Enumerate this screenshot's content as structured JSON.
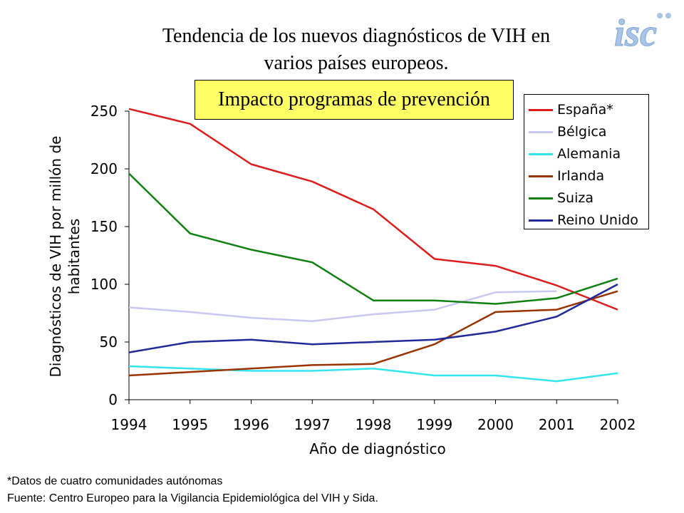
{
  "title_lines": [
    "Tendencia de los nuevos diagnósticos de VIH en",
    "varios países europeos."
  ],
  "logo": "isc",
  "banner": "Impacto programas de prevención",
  "footnotes": [
    "*Datos de cuatro comunidades autónomas",
    "Fuente: Centro Europeo para la Vigilancia Epidemiológica del VIH y Sida."
  ],
  "chart_data": {
    "type": "line",
    "title": "Tendencia de los nuevos diagnósticos de VIH en varios países europeos.",
    "xlabel": "Año de diagnóstico",
    "ylabel_lines": [
      "Diagnósticos de VIH por millón de",
      "habitantes"
    ],
    "x": [
      "1994",
      "1995",
      "1996",
      "1997",
      "1998",
      "1999",
      "2000",
      "2001",
      "2002"
    ],
    "ylim": [
      0,
      250
    ],
    "yticks": [
      0,
      50,
      100,
      150,
      200,
      250
    ],
    "grid": false,
    "legend_position": "top-right",
    "series": [
      {
        "name": "España*",
        "color": "#dd1c1c",
        "values": [
          252,
          239,
          204,
          189,
          165,
          122,
          116,
          99,
          78
        ]
      },
      {
        "name": "Bélgica",
        "color": "#c8c8f0",
        "values": [
          80,
          76,
          71,
          68,
          74,
          78,
          93,
          94,
          null
        ]
      },
      {
        "name": "Alemania",
        "color": "#33e6ee",
        "values": [
          29,
          27,
          25,
          25,
          27,
          21,
          21,
          16,
          23
        ]
      },
      {
        "name": "Irlanda",
        "color": "#993300",
        "values": [
          21,
          24,
          27,
          30,
          31,
          48,
          76,
          78,
          94
        ]
      },
      {
        "name": "Suiza",
        "color": "#108010",
        "values": [
          196,
          144,
          130,
          119,
          86,
          86,
          83,
          88,
          105
        ]
      },
      {
        "name": "Reino Unido",
        "color": "#202a99",
        "values": [
          41,
          50,
          52,
          48,
          50,
          52,
          59,
          72,
          100
        ]
      }
    ]
  }
}
